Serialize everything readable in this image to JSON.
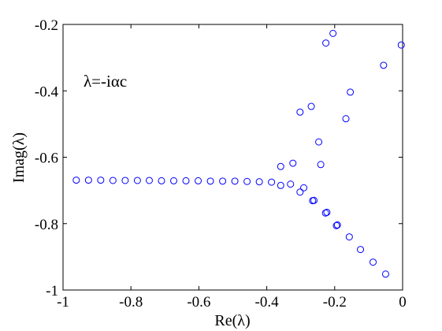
{
  "chart_data": {
    "type": "scatter",
    "title": "",
    "xlabel": "Re(λ)",
    "ylabel": "Imag(λ)",
    "annotation": "λ=-iαc",
    "xlim": [
      -1,
      0
    ],
    "ylim": [
      -1,
      -0.2
    ],
    "xticks": [
      -1,
      -0.8,
      -0.6,
      -0.4,
      -0.2,
      0
    ],
    "xtick_labels": [
      "-1",
      "-0.8",
      "-0.6",
      "-0.4",
      "-0.2",
      "0"
    ],
    "yticks": [
      -1,
      -0.8,
      -0.6,
      -0.4,
      -0.2
    ],
    "ytick_labels": [
      "-1",
      "-0.8",
      "-0.6",
      "-0.4",
      "-0.2"
    ],
    "grid": false,
    "legend": "none",
    "marker": "circle-open",
    "marker_color": "#0000ff",
    "series": [
      {
        "x": [
          -0.961,
          -0.925,
          -0.889,
          -0.853,
          -0.817,
          -0.781,
          -0.746,
          -0.71,
          -0.674,
          -0.638,
          -0.602,
          -0.566,
          -0.53,
          -0.494,
          -0.458,
          -0.422,
          -0.386,
          -0.359,
          -0.33,
          -0.302,
          -0.291,
          -0.265,
          -0.261,
          -0.227,
          -0.223,
          -0.195,
          -0.192,
          -0.157,
          -0.124,
          -0.087,
          -0.05,
          -0.359,
          -0.323,
          -0.302,
          -0.269,
          -0.247,
          -0.241,
          -0.226,
          -0.205,
          -0.167,
          -0.154,
          -0.056,
          -0.004
        ],
        "y": [
          -0.669,
          -0.669,
          -0.669,
          -0.67,
          -0.67,
          -0.67,
          -0.67,
          -0.671,
          -0.671,
          -0.671,
          -0.671,
          -0.672,
          -0.672,
          -0.672,
          -0.673,
          -0.674,
          -0.675,
          -0.685,
          -0.681,
          -0.705,
          -0.692,
          -0.731,
          -0.73,
          -0.768,
          -0.766,
          -0.806,
          -0.804,
          -0.84,
          -0.878,
          -0.916,
          -0.952,
          -0.628,
          -0.618,
          -0.464,
          -0.447,
          -0.554,
          -0.622,
          -0.256,
          -0.227,
          -0.484,
          -0.404,
          -0.323,
          -0.262
        ]
      }
    ]
  }
}
